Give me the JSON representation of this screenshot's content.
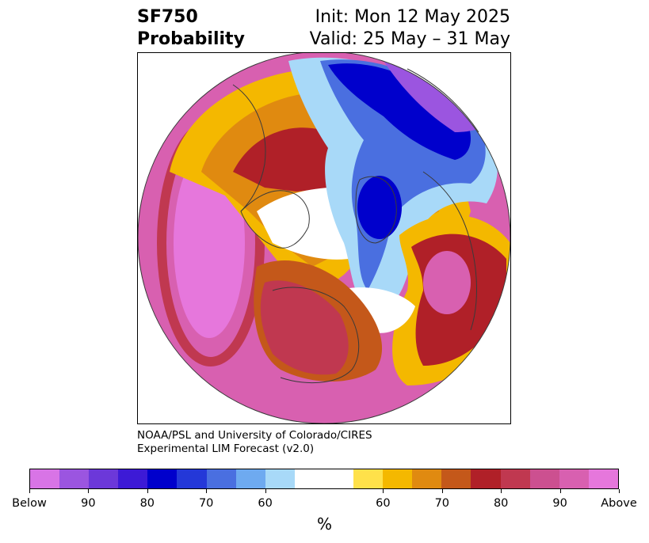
{
  "header": {
    "left_line1": "SF750",
    "left_line2": "Probability",
    "right_line1": "Init: Mon 12 May 2025",
    "right_line2": "Valid: 25 May – 31 May"
  },
  "credit": {
    "line1": "NOAA/PSL and University of Colorado/CIRES",
    "line2": "Experimental LIM Forecast (v2.0)"
  },
  "colorbar": {
    "colors": [
      "#d874e6",
      "#9b55e0",
      "#6c38d9",
      "#3d1ad6",
      "#0000cc",
      "#2438d8",
      "#4a6fe0",
      "#6eaaf0",
      "#a8d9f8",
      "#ffffff",
      "#ffffff",
      "#ffe14a",
      "#f4b800",
      "#e08a10",
      "#c4581a",
      "#b02028",
      "#c03850",
      "#cc5090",
      "#d860b0",
      "#e677dc"
    ],
    "ticks": [
      "Below",
      "90",
      "80",
      "70",
      "60",
      "60",
      "70",
      "80",
      "90",
      "Above"
    ],
    "unit": "%"
  },
  "map": {
    "palette": {
      "deep_purple": "#9b55e0",
      "deep_blue": "#0000cc",
      "mid_blue": "#4a6fe0",
      "light_blue": "#a8d9f8",
      "yellow": "#ffe14a",
      "gold": "#f4b800",
      "orange": "#e08a10",
      "dark_orange": "#c4581a",
      "red": "#b02028",
      "crimson": "#c03850",
      "pink": "#d860b0",
      "magenta": "#e677dc",
      "coast": "#3a3a3a"
    }
  }
}
